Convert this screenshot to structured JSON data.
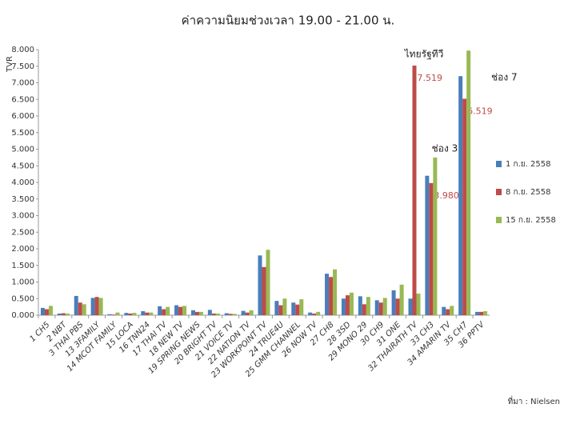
{
  "chart_data": {
    "type": "bar",
    "title": "ค่าความนิยมช่วงเวลา 19.00 - 21.00 น.",
    "y_label": "TVR",
    "source": "ที่มา : Nielsen",
    "annotations": [
      "ไทยรัฐทีวี",
      "ช่อง 3",
      "ช่อง 7"
    ],
    "categories": [
      "1 CH5",
      "2 NBT",
      "3 THAI PBS",
      "13 3FAMILY",
      "14 MCOT FAMILY",
      "15 LOCA",
      "16 TNN24",
      "17 THAI TV",
      "18 NEW TV",
      "19 SPRING NEWS",
      "20 BRIGHT TV",
      "21 VOICE TV",
      "22 NATION TV",
      "23 WORKPOINT TV",
      "24 TRUE4U",
      "25 GMM CHANNEL",
      "26 NOW TV",
      "27 CH8",
      "28 3SD",
      "29 MONO 29",
      "30 CH9",
      "31 ONE",
      "32 THAIRATH TV",
      "33 CH3",
      "34 AMARIN TV",
      "35 CH7",
      "36 PPTV"
    ],
    "series": [
      {
        "name": "1 ก.ย. 2558",
        "color": "#4a7ebb",
        "values": [
          0.22,
          0.05,
          0.58,
          0.52,
          0.03,
          0.07,
          0.12,
          0.27,
          0.3,
          0.15,
          0.16,
          0.06,
          0.13,
          1.8,
          0.43,
          0.38,
          0.08,
          1.25,
          0.5,
          0.57,
          0.45,
          0.75,
          0.5,
          4.2,
          0.25,
          7.2,
          0.1
        ]
      },
      {
        "name": "8 ก.ย. 2558",
        "color": "#be4b48",
        "values": [
          0.18,
          0.06,
          0.38,
          0.55,
          0.02,
          0.05,
          0.08,
          0.18,
          0.25,
          0.1,
          0.05,
          0.04,
          0.08,
          1.45,
          0.3,
          0.32,
          0.05,
          1.15,
          0.6,
          0.33,
          0.38,
          0.5,
          7.519,
          3.98,
          0.18,
          6.519,
          0.1
        ],
        "value_labels": [
          null,
          null,
          null,
          null,
          null,
          null,
          null,
          null,
          null,
          null,
          null,
          null,
          null,
          null,
          null,
          null,
          null,
          null,
          null,
          null,
          null,
          null,
          "7.519",
          "3.980",
          null,
          "6.519",
          null
        ]
      },
      {
        "name": "15 ก.ย. 2558",
        "color": "#98b954",
        "values": [
          0.28,
          0.05,
          0.33,
          0.52,
          0.08,
          0.07,
          0.08,
          0.25,
          0.28,
          0.1,
          0.05,
          0.04,
          0.15,
          1.97,
          0.5,
          0.48,
          0.1,
          1.38,
          0.68,
          0.55,
          0.52,
          0.92,
          0.65,
          4.75,
          0.28,
          7.97,
          0.12
        ]
      }
    ],
    "ylim": [
      0,
      8
    ],
    "yticks": [
      {
        "value": 0,
        "label": "0.000"
      },
      {
        "value": 0.5,
        "label": "0.500"
      },
      {
        "value": 1,
        "label": "1.000"
      },
      {
        "value": 1.5,
        "label": "1.500"
      },
      {
        "value": 2,
        "label": "2.000"
      },
      {
        "value": 2.5,
        "label": "2.500"
      },
      {
        "value": 3,
        "label": "3.000"
      },
      {
        "value": 3.5,
        "label": "3.500"
      },
      {
        "value": 4,
        "label": "4.000"
      },
      {
        "value": 4.5,
        "label": "4.500"
      },
      {
        "value": 5,
        "label": "5.000"
      },
      {
        "value": 5.5,
        "label": "5.500"
      },
      {
        "value": 6,
        "label": "6.000"
      },
      {
        "value": 6.5,
        "label": "6.500"
      },
      {
        "value": 7,
        "label": "7.000"
      },
      {
        "value": 7.5,
        "label": "7.500"
      },
      {
        "value": 8,
        "label": "8.000"
      }
    ],
    "grid": false,
    "legend": "right"
  }
}
